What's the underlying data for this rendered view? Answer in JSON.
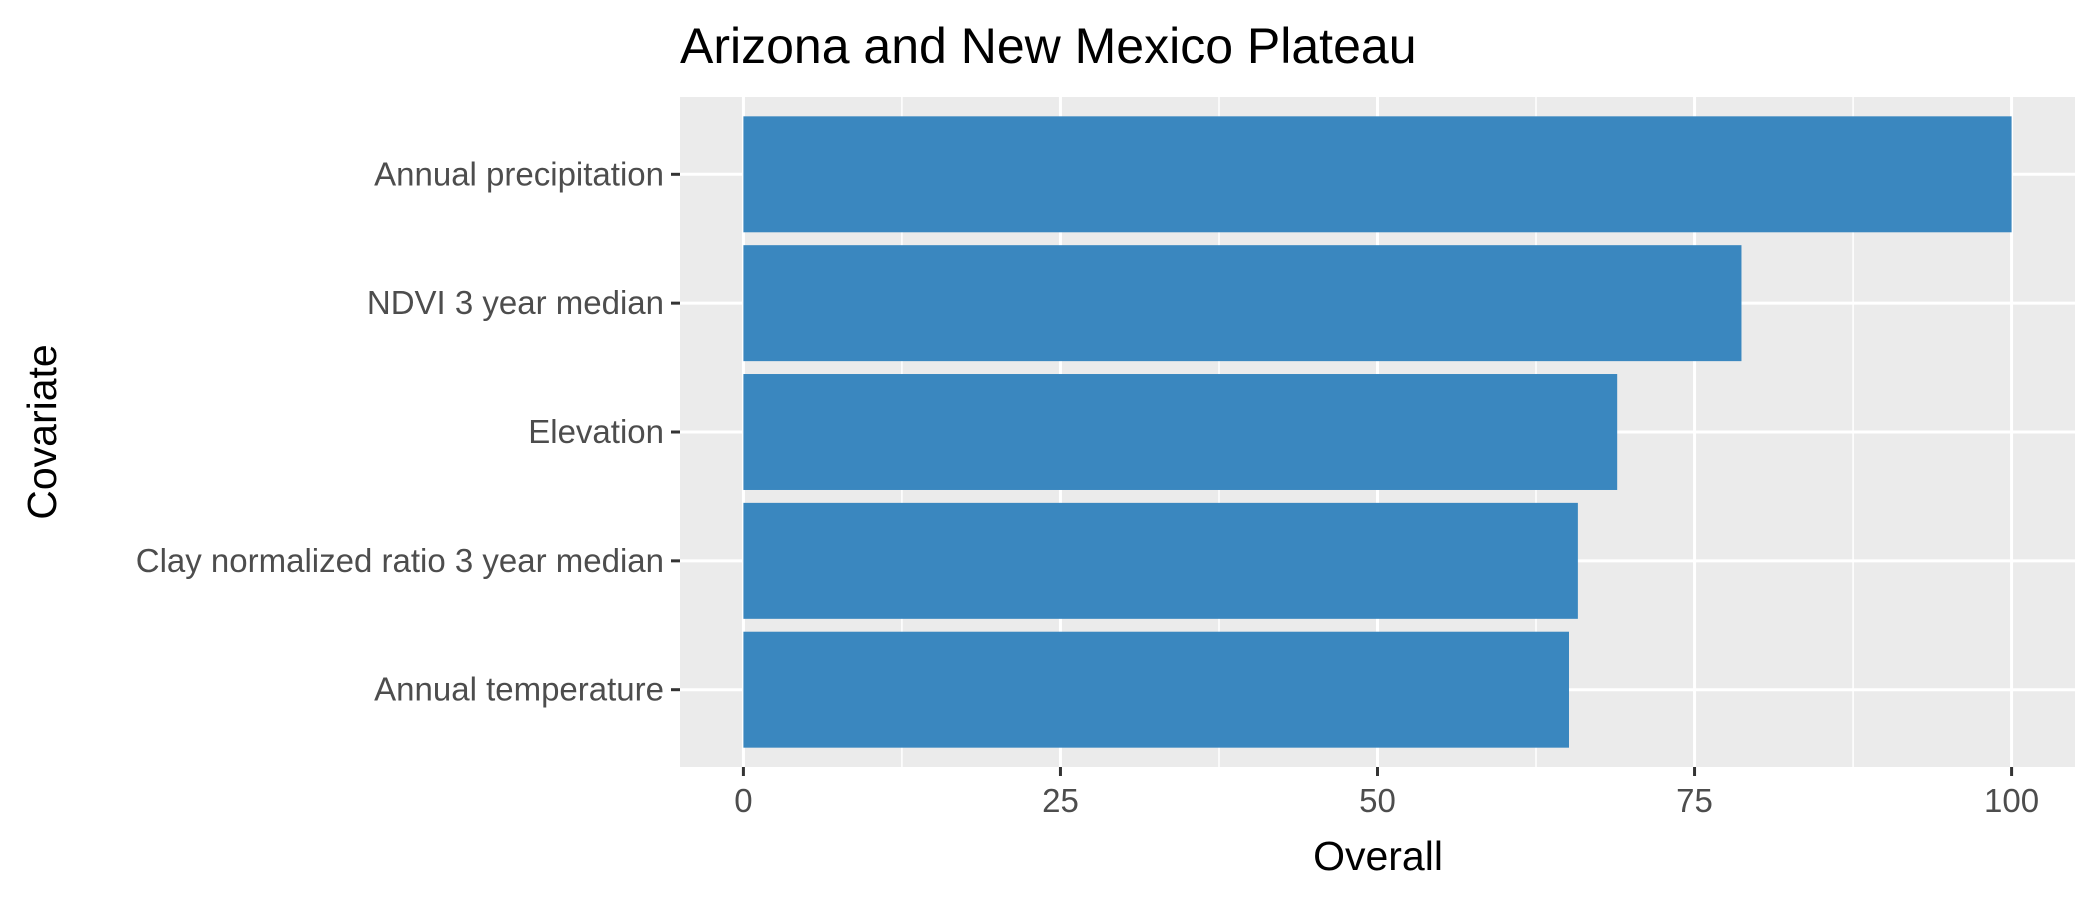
{
  "chart_data": {
    "type": "bar",
    "orientation": "horizontal",
    "title": "Arizona and New Mexico Plateau",
    "xlabel": "Overall",
    "ylabel": "Covariate",
    "categories": [
      "Annual precipitation",
      "NDVI 3 year median",
      "Elevation",
      "Clay normalized ratio 3 year median",
      "Annual temperature"
    ],
    "values": [
      100,
      78.7,
      68.9,
      65.8,
      65.1
    ],
    "xlim": [
      -5,
      105
    ],
    "xticks": [
      0,
      25,
      50,
      75,
      100
    ],
    "xtick_labels": [
      "0",
      "25",
      "50",
      "75",
      "100"
    ],
    "grid": true,
    "legend": "none",
    "colors": {
      "bar": "#3a87bf",
      "panel_background": "#ebebeb",
      "grid": "#ffffff",
      "tick_text": "#4d4d4d",
      "text": "#000000"
    }
  }
}
